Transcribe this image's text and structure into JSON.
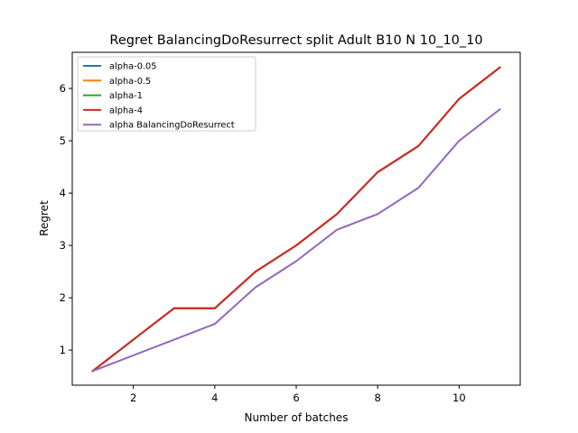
{
  "chart_data": {
    "type": "line",
    "title": "Regret BalancingDoResurrect split Adult B10 N 10_10_10",
    "xlabel": "Number of batches",
    "ylabel": "Regret",
    "x": [
      1,
      2,
      3,
      4,
      5,
      6,
      7,
      8,
      9,
      10,
      11
    ],
    "xlim": [
      0.5,
      11.5
    ],
    "ylim": [
      0.33,
      6.69
    ],
    "xticks": [
      2,
      4,
      6,
      8,
      10
    ],
    "yticks": [
      1,
      2,
      3,
      4,
      5,
      6
    ],
    "grid": false,
    "legend_position": "top-left",
    "series": [
      {
        "name": "alpha-0.05",
        "color": "#1f77b4",
        "values": [
          0.6,
          1.2,
          1.8,
          1.8,
          2.5,
          3.0,
          3.6,
          4.4,
          4.9,
          5.8,
          6.4
        ]
      },
      {
        "name": "alpha-0.5",
        "color": "#ff7f0e",
        "values": [
          0.6,
          1.2,
          1.8,
          1.8,
          2.5,
          3.0,
          3.6,
          4.4,
          4.9,
          5.8,
          6.4
        ]
      },
      {
        "name": "alpha-1",
        "color": "#2ca02c",
        "values": [
          0.6,
          1.2,
          1.8,
          1.8,
          2.5,
          3.0,
          3.6,
          4.4,
          4.9,
          5.8,
          6.4
        ]
      },
      {
        "name": "alpha-4",
        "color": "#d62728",
        "values": [
          0.6,
          1.2,
          1.8,
          1.8,
          2.5,
          3.0,
          3.6,
          4.4,
          4.9,
          5.8,
          6.4
        ]
      },
      {
        "name": "alpha BalancingDoResurrect",
        "color": "#9467bd",
        "values": [
          0.6,
          0.9,
          1.2,
          1.5,
          2.2,
          2.7,
          3.3,
          3.6,
          4.1,
          5.0,
          5.6
        ]
      }
    ]
  }
}
